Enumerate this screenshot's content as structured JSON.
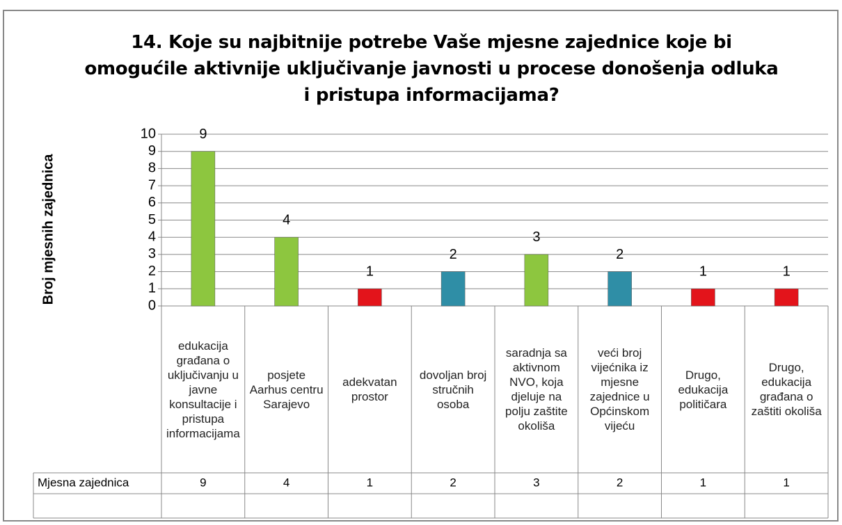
{
  "chart_data": {
    "type": "bar",
    "title": "14. Koje su najbitnije  potrebe Vaše mjesne zajednice koje bi omogućile aktivnije uključivanje javnosti u procese donošenja odluka i pristupa informacijama?",
    "ylabel": "Broj mjesnih zajednica",
    "categories": [
      "edukacija građana o uključivanju u javne konsultacije i pristupa informacijama",
      "posjete Aarhus centru Sarajevo",
      "adekvatan prostor",
      "dovoljan broj stručnih osoba",
      "saradnja sa aktivnom NVO, koja djeluje na polju zaštite okoliša",
      "veći broj vijećnika iz mjesne zajednice u Općinskom vijeću",
      "Drugo, edukacija političara",
      "Drugo, edukacija građana o zaštiti okoliša"
    ],
    "series": [
      {
        "name": "Mjesna zajednica",
        "colors": [
          "#8dc63f",
          "#8dc63f",
          "#e3141b",
          "#2f8ea6",
          "#8dc63f",
          "#2f8ea6",
          "#e3141b",
          "#e3141b"
        ],
        "values": [
          9,
          4,
          1,
          2,
          3,
          2,
          1,
          1
        ]
      }
    ],
    "ylim": [
      0,
      10
    ],
    "yticks": [
      0,
      1,
      2,
      3,
      4,
      5,
      6,
      7,
      8,
      9,
      10
    ],
    "grid": true
  }
}
